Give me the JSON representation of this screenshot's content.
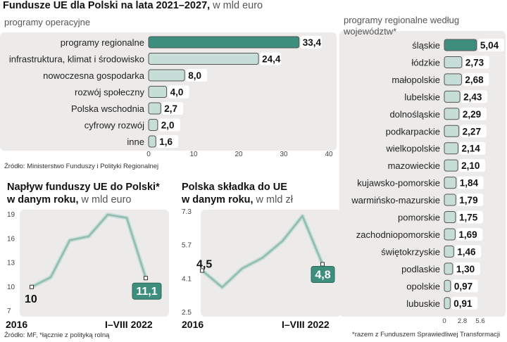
{
  "header": {
    "title_bold": "Fundusze UE dla Polski na lata 2021–2027,",
    "title_light": " w mld euro"
  },
  "colors": {
    "accent": "#3e8e7e",
    "bar": "#c7ddd7",
    "panel": "#ecebe9",
    "bar_border": "#555555"
  },
  "chart_data": [
    {
      "type": "bar",
      "orientation": "horizontal",
      "title": "programy operacyjne",
      "categories": [
        "programy regionalne",
        "infrastruktura, klimat i środowisko",
        "nowoczesna gospodarka",
        "rozwój społeczny",
        "Polska wschodnia",
        "cyfrowy rozwój",
        "inne"
      ],
      "values": [
        33.4,
        24.4,
        8.0,
        4.0,
        2.7,
        2.0,
        1.6
      ],
      "value_labels": [
        "33,4",
        "24,4",
        "8,0",
        "4,0",
        "2,7",
        "2,0",
        "1,6"
      ],
      "xlim": [
        0,
        40
      ],
      "ticks": [
        "0",
        "10",
        "20",
        "30",
        "40"
      ],
      "highlight_index": 0,
      "source": "Źródło: Ministerstwo Funduszy i Polityki Regionalnej"
    },
    {
      "type": "bar",
      "orientation": "horizontal",
      "title": "programy regionalne według województw*",
      "categories": [
        "śląskie",
        "łódzkie",
        "małopolskie",
        "lubelskie",
        "dolnośląskie",
        "podkarpackie",
        "wielkopolskie",
        "mazowieckie",
        "kujawsko-pomorskie",
        "warmińsko-mazurskie",
        "pomorskie",
        "zachodniopomorskie",
        "świętokrzyskie",
        "podlaskie",
        "opolskie",
        "lubuskie"
      ],
      "values": [
        5.04,
        2.73,
        2.68,
        2.43,
        2.29,
        2.27,
        2.14,
        2.1,
        1.84,
        1.79,
        1.75,
        1.69,
        1.46,
        1.3,
        0.97,
        0.91
      ],
      "value_labels": [
        "5,04",
        "2,73",
        "2,68",
        "2,43",
        "2,29",
        "2,27",
        "2,14",
        "2,10",
        "1,84",
        "1,79",
        "1,75",
        "1,69",
        "1,46",
        "1,30",
        "0,97",
        "0,91"
      ],
      "xlim": [
        0,
        5.6
      ],
      "ticks": [
        "0",
        "2.8",
        "5.6"
      ],
      "highlight_index": 0,
      "footnote": "*razem z Funduszem Sprawiedliwej Transformacji"
    },
    {
      "type": "line",
      "title": "Napływ funduszy UE do Polski*",
      "title_line2": "w danym roku,",
      "unit": " w mld euro",
      "x_labels": [
        "2016",
        "I–VIII 2022"
      ],
      "values": [
        10.0,
        11.2,
        15.8,
        16.3,
        19.0,
        18.6,
        11.1
      ],
      "ylim": [
        7,
        19
      ],
      "yticks": [
        "7",
        "10",
        "13",
        "16",
        "19"
      ],
      "start_label": "10",
      "end_label": "11,1",
      "source": "Źródło: MF, *łącznie z polityką rolną"
    },
    {
      "type": "line",
      "title": "Polska składka do UE",
      "title_line2": "w danym roku,",
      "unit": " w mld zł",
      "x_labels": [
        "2016",
        "I–VIII 2022"
      ],
      "values": [
        4.5,
        3.7,
        4.6,
        5.1,
        5.9,
        7.1,
        4.8
      ],
      "ylim": [
        2.5,
        7.3
      ],
      "yticks": [
        "2.5",
        "4.1",
        "5.7",
        "7.3"
      ],
      "start_label": "4,5",
      "end_label": "4,8"
    }
  ]
}
